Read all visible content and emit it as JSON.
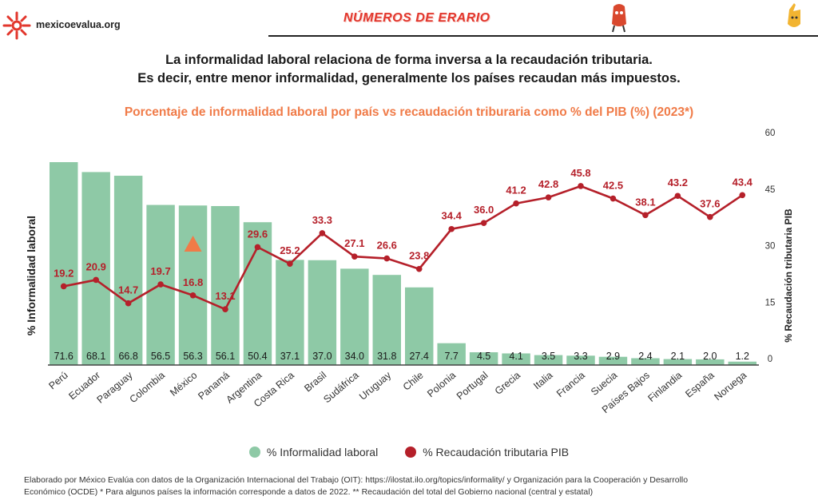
{
  "header": {
    "site": "mexicoevalua.org",
    "brand": "NÚMEROS DE ERARIO",
    "colors": {
      "brand": "#e2362c",
      "logo": "#e2362c"
    }
  },
  "headline": {
    "line1": "La informalidad laboral relaciona de forma inversa a la recaudación tributaria.",
    "line2": "Es decir, entre menor informalidad, generalmente los países recaudan más impuestos."
  },
  "chart_data": {
    "type": "bar",
    "title": "Porcentaje de informalidad laboral por país vs recaudación triburaria como % del PIB (%) (2023*)",
    "categories": [
      "Perú",
      "Ecuador",
      "Paraguay",
      "Colombia",
      "México",
      "Panamá",
      "Argentina",
      "Costa Rica",
      "Brasil",
      "Sudáfrica",
      "Uruguay",
      "Chile",
      "Polonia",
      "Portugal",
      "Grecia",
      "Italia",
      "Francia",
      "Suecia",
      "Países Bajos",
      "Finlandia",
      "España",
      "Noruega"
    ],
    "series": [
      {
        "name": "% Informalidad laboral",
        "type": "bar",
        "axis": "left",
        "color": "#8ec9a6",
        "values": [
          71.6,
          68.1,
          66.8,
          56.5,
          56.3,
          56.1,
          50.4,
          37.1,
          37.0,
          34.0,
          31.8,
          27.4,
          7.7,
          4.5,
          4.1,
          3.5,
          3.3,
          2.9,
          2.4,
          2.1,
          2.0,
          1.2
        ]
      },
      {
        "name": "% Recaudación tributaria PIB",
        "type": "line",
        "axis": "right",
        "color": "#b5202a",
        "values": [
          19.2,
          20.9,
          14.7,
          19.7,
          16.8,
          13.1,
          29.6,
          25.2,
          33.3,
          27.1,
          26.6,
          23.8,
          34.4,
          36.0,
          41.2,
          42.8,
          45.8,
          42.5,
          38.1,
          43.2,
          37.6,
          43.4
        ]
      }
    ],
    "ylabel": "% Informalidad laboral",
    "y2label": "% Recaudación tributaria PIB",
    "ylim": [
      0,
      80
    ],
    "y2lim": [
      0,
      60
    ],
    "y2ticks": [
      "0",
      "15",
      "30",
      "45",
      "60"
    ],
    "grid": false,
    "legend": "bottom",
    "annotation": {
      "category": "México",
      "marker": "triangle",
      "color": "#f07b48"
    }
  },
  "footnote": {
    "line1": "Elaborado por México Evalúa con datos de la Organización Internacional del Trabajo (OIT): https://ilostat.ilo.org/topics/informality/ y Organización para la Cooperación y Desarrollo",
    "line2": "Económico (OCDE) * Para algunos países la información corresponde a datos de 2022. ** Recaudación del total del Gobierno nacional (central y estatal)"
  }
}
